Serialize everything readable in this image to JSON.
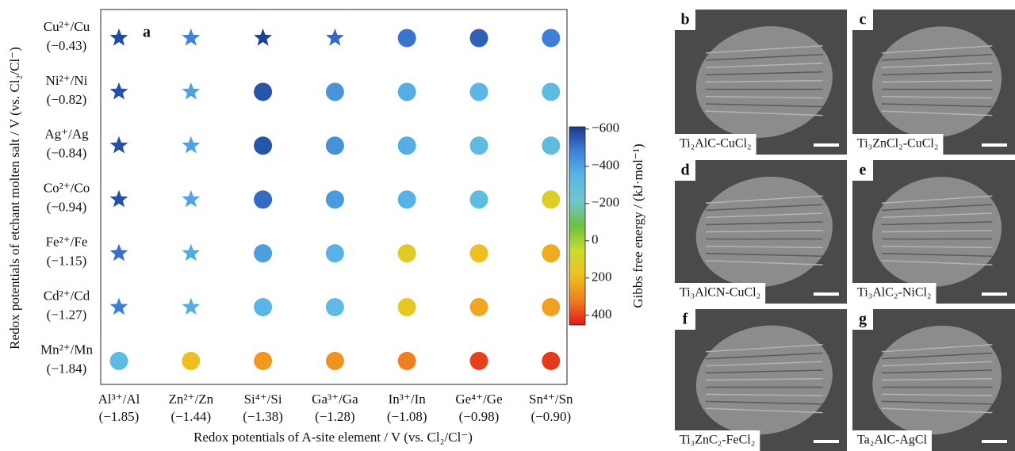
{
  "chart_data": {
    "type": "dotmatrix",
    "panel_label": "a",
    "x_label": "Redox potentials of A-site element / V (vs. Cl₂/Cl⁻)",
    "y_label": "Redox potentials of etchant molten salt / V (vs. Cl₂/Cl⁻)",
    "x_categories": [
      [
        "Al³⁺/Al",
        "(−1.85)"
      ],
      [
        "Zn²⁺/Zn",
        "(−1.44)"
      ],
      [
        "Si⁴⁺/Si",
        "(−1.38)"
      ],
      [
        "Ga³⁺/Ga",
        "(−1.28)"
      ],
      [
        "In³⁺/In",
        "(−1.08)"
      ],
      [
        "Ge⁴⁺/Ge",
        "(−0.98)"
      ],
      [
        "Sn⁴⁺/Sn",
        "(−0.90)"
      ]
    ],
    "y_categories": [
      [
        "Cu²⁺/Cu",
        "(−0.43)"
      ],
      [
        "Ni²⁺/Ni",
        "(−0.82)"
      ],
      [
        "Ag⁺/Ag",
        "(−0.84)"
      ],
      [
        "Co²⁺/Co",
        "(−0.94)"
      ],
      [
        "Fe²⁺/Fe",
        "(−1.15)"
      ],
      [
        "Cd²⁺/Cd",
        "(−1.27)"
      ],
      [
        "Mn²⁺/Mn",
        "(−1.84)"
      ]
    ],
    "values": [
      [
        -580,
        -470,
        -600,
        -520,
        -500,
        -540,
        -480
      ],
      [
        -570,
        -400,
        -560,
        -430,
        -370,
        -350,
        -320
      ],
      [
        -570,
        -400,
        -560,
        -440,
        -370,
        -330,
        -310
      ],
      [
        -570,
        -390,
        -520,
        -420,
        -360,
        -320,
        120
      ],
      [
        -510,
        -380,
        -410,
        -360,
        140,
        190,
        230
      ],
      [
        -480,
        -370,
        -350,
        -320,
        150,
        240,
        250
      ],
      [
        -320,
        190,
        270,
        280,
        320,
        400,
        410
      ]
    ],
    "markers": [
      [
        "star",
        "star",
        "star",
        "star",
        "circle",
        "circle",
        "circle"
      ],
      [
        "star",
        "star",
        "circle",
        "circle",
        "circle",
        "circle",
        "circle"
      ],
      [
        "star",
        "star",
        "circle",
        "circle",
        "circle",
        "circle",
        "circle"
      ],
      [
        "star",
        "star",
        "circle",
        "circle",
        "circle",
        "circle",
        "circle"
      ],
      [
        "star",
        "star",
        "circle",
        "circle",
        "circle",
        "circle",
        "circle"
      ],
      [
        "star",
        "star",
        "circle",
        "circle",
        "circle",
        "circle",
        "circle"
      ],
      [
        "circle",
        "circle",
        "circle",
        "circle",
        "circle",
        "circle",
        "circle"
      ]
    ],
    "colorbar_label": "Gibbs free energy / (kJ·mol⁻¹)",
    "clim": [
      -612,
      452
    ],
    "colorbar_ticks": [
      {
        "value": -600,
        "label": "−600"
      },
      {
        "value": -400,
        "label": "−400"
      },
      {
        "value": -200,
        "label": "−200"
      },
      0,
      200,
      400
    ],
    "colorscale": [
      "#1a3a8f",
      "#3f80d8",
      "#5ab8e6",
      "#70c6cc",
      "#6cc040",
      "#c8dc30",
      "#f0c020",
      "#f08020",
      "#e01818"
    ]
  },
  "panels": [
    {
      "letter": "b",
      "label": "Ti₂AlC-CuCl₂"
    },
    {
      "letter": "c",
      "label": "Ti₃ZnCl₂-CuCl₂"
    },
    {
      "letter": "d",
      "label": "Ti₃AlCN-CuCl₂"
    },
    {
      "letter": "e",
      "label": "Ti₃AlC₂-NiCl₂"
    },
    {
      "letter": "f",
      "label": "Ti₃ZnC₂-FeCl₂"
    },
    {
      "letter": "g",
      "label": "Ta₂AlC-AgCl"
    }
  ]
}
